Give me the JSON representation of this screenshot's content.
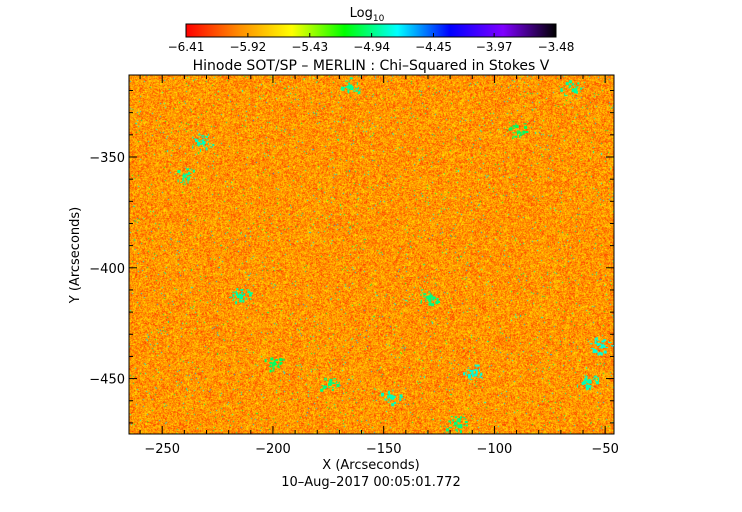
{
  "chart_data": {
    "type": "heatmap",
    "title": "Hinode SOT/SP – MERLIN : Chi–Squared in Stokes V",
    "xlabel": "X (Arcseconds)",
    "ylabel": "Y (Arcseconds)",
    "timestamp": "10–Aug–2017 00:05:01.772",
    "xlim": [
      -265,
      -46
    ],
    "ylim": [
      -475,
      -313
    ],
    "x_ticks": [
      -250,
      -200,
      -150,
      -100,
      -50
    ],
    "y_ticks": [
      -350,
      -400,
      -450
    ],
    "x_tick_labels": [
      "−250",
      "−200",
      "−150",
      "−100",
      "−50"
    ],
    "y_tick_labels": [
      "−350",
      "−400",
      "−450"
    ],
    "colorbar": {
      "label_base": "Log",
      "label_sub": "10",
      "range": [
        -6.41,
        -3.48
      ],
      "tick_values": [
        -6.41,
        -5.92,
        -5.43,
        -4.94,
        -4.45,
        -3.97,
        -3.48
      ],
      "tick_labels": [
        "−6.41",
        "−5.92",
        "−5.43",
        "−4.94",
        "−4.45",
        "−3.97",
        "−3.48"
      ],
      "colors": [
        "#ff0000",
        "#ff8c00",
        "#ffff00",
        "#00ff00",
        "#00ffff",
        "#0000ff",
        "#7f00ff",
        "#000000"
      ]
    },
    "field_distribution": {
      "dominant_range": [
        -6.3,
        -5.6
      ],
      "typical_value": -5.95,
      "sparse_patch_range": [
        -5.1,
        -4.6
      ],
      "patches": [
        {
          "x": -232,
          "y": -343,
          "value": -4.85
        },
        {
          "x": -165,
          "y": -318,
          "value": -4.9
        },
        {
          "x": -215,
          "y": -413,
          "value": -4.9
        },
        {
          "x": -147,
          "y": -458,
          "value": -4.85
        },
        {
          "x": -110,
          "y": -447,
          "value": -4.8
        },
        {
          "x": -58,
          "y": -451,
          "value": -4.85
        },
        {
          "x": -130,
          "y": -413,
          "value": -4.95
        },
        {
          "x": -240,
          "y": -358,
          "value": -4.9
        },
        {
          "x": -52,
          "y": -435,
          "value": -4.8
        },
        {
          "x": -175,
          "y": -452,
          "value": -4.95
        },
        {
          "x": -118,
          "y": -470,
          "value": -4.95
        },
        {
          "x": -90,
          "y": -338,
          "value": -5.0
        },
        {
          "x": -200,
          "y": -443,
          "value": -5.0
        },
        {
          "x": -65,
          "y": -319,
          "value": -4.9
        }
      ]
    }
  }
}
